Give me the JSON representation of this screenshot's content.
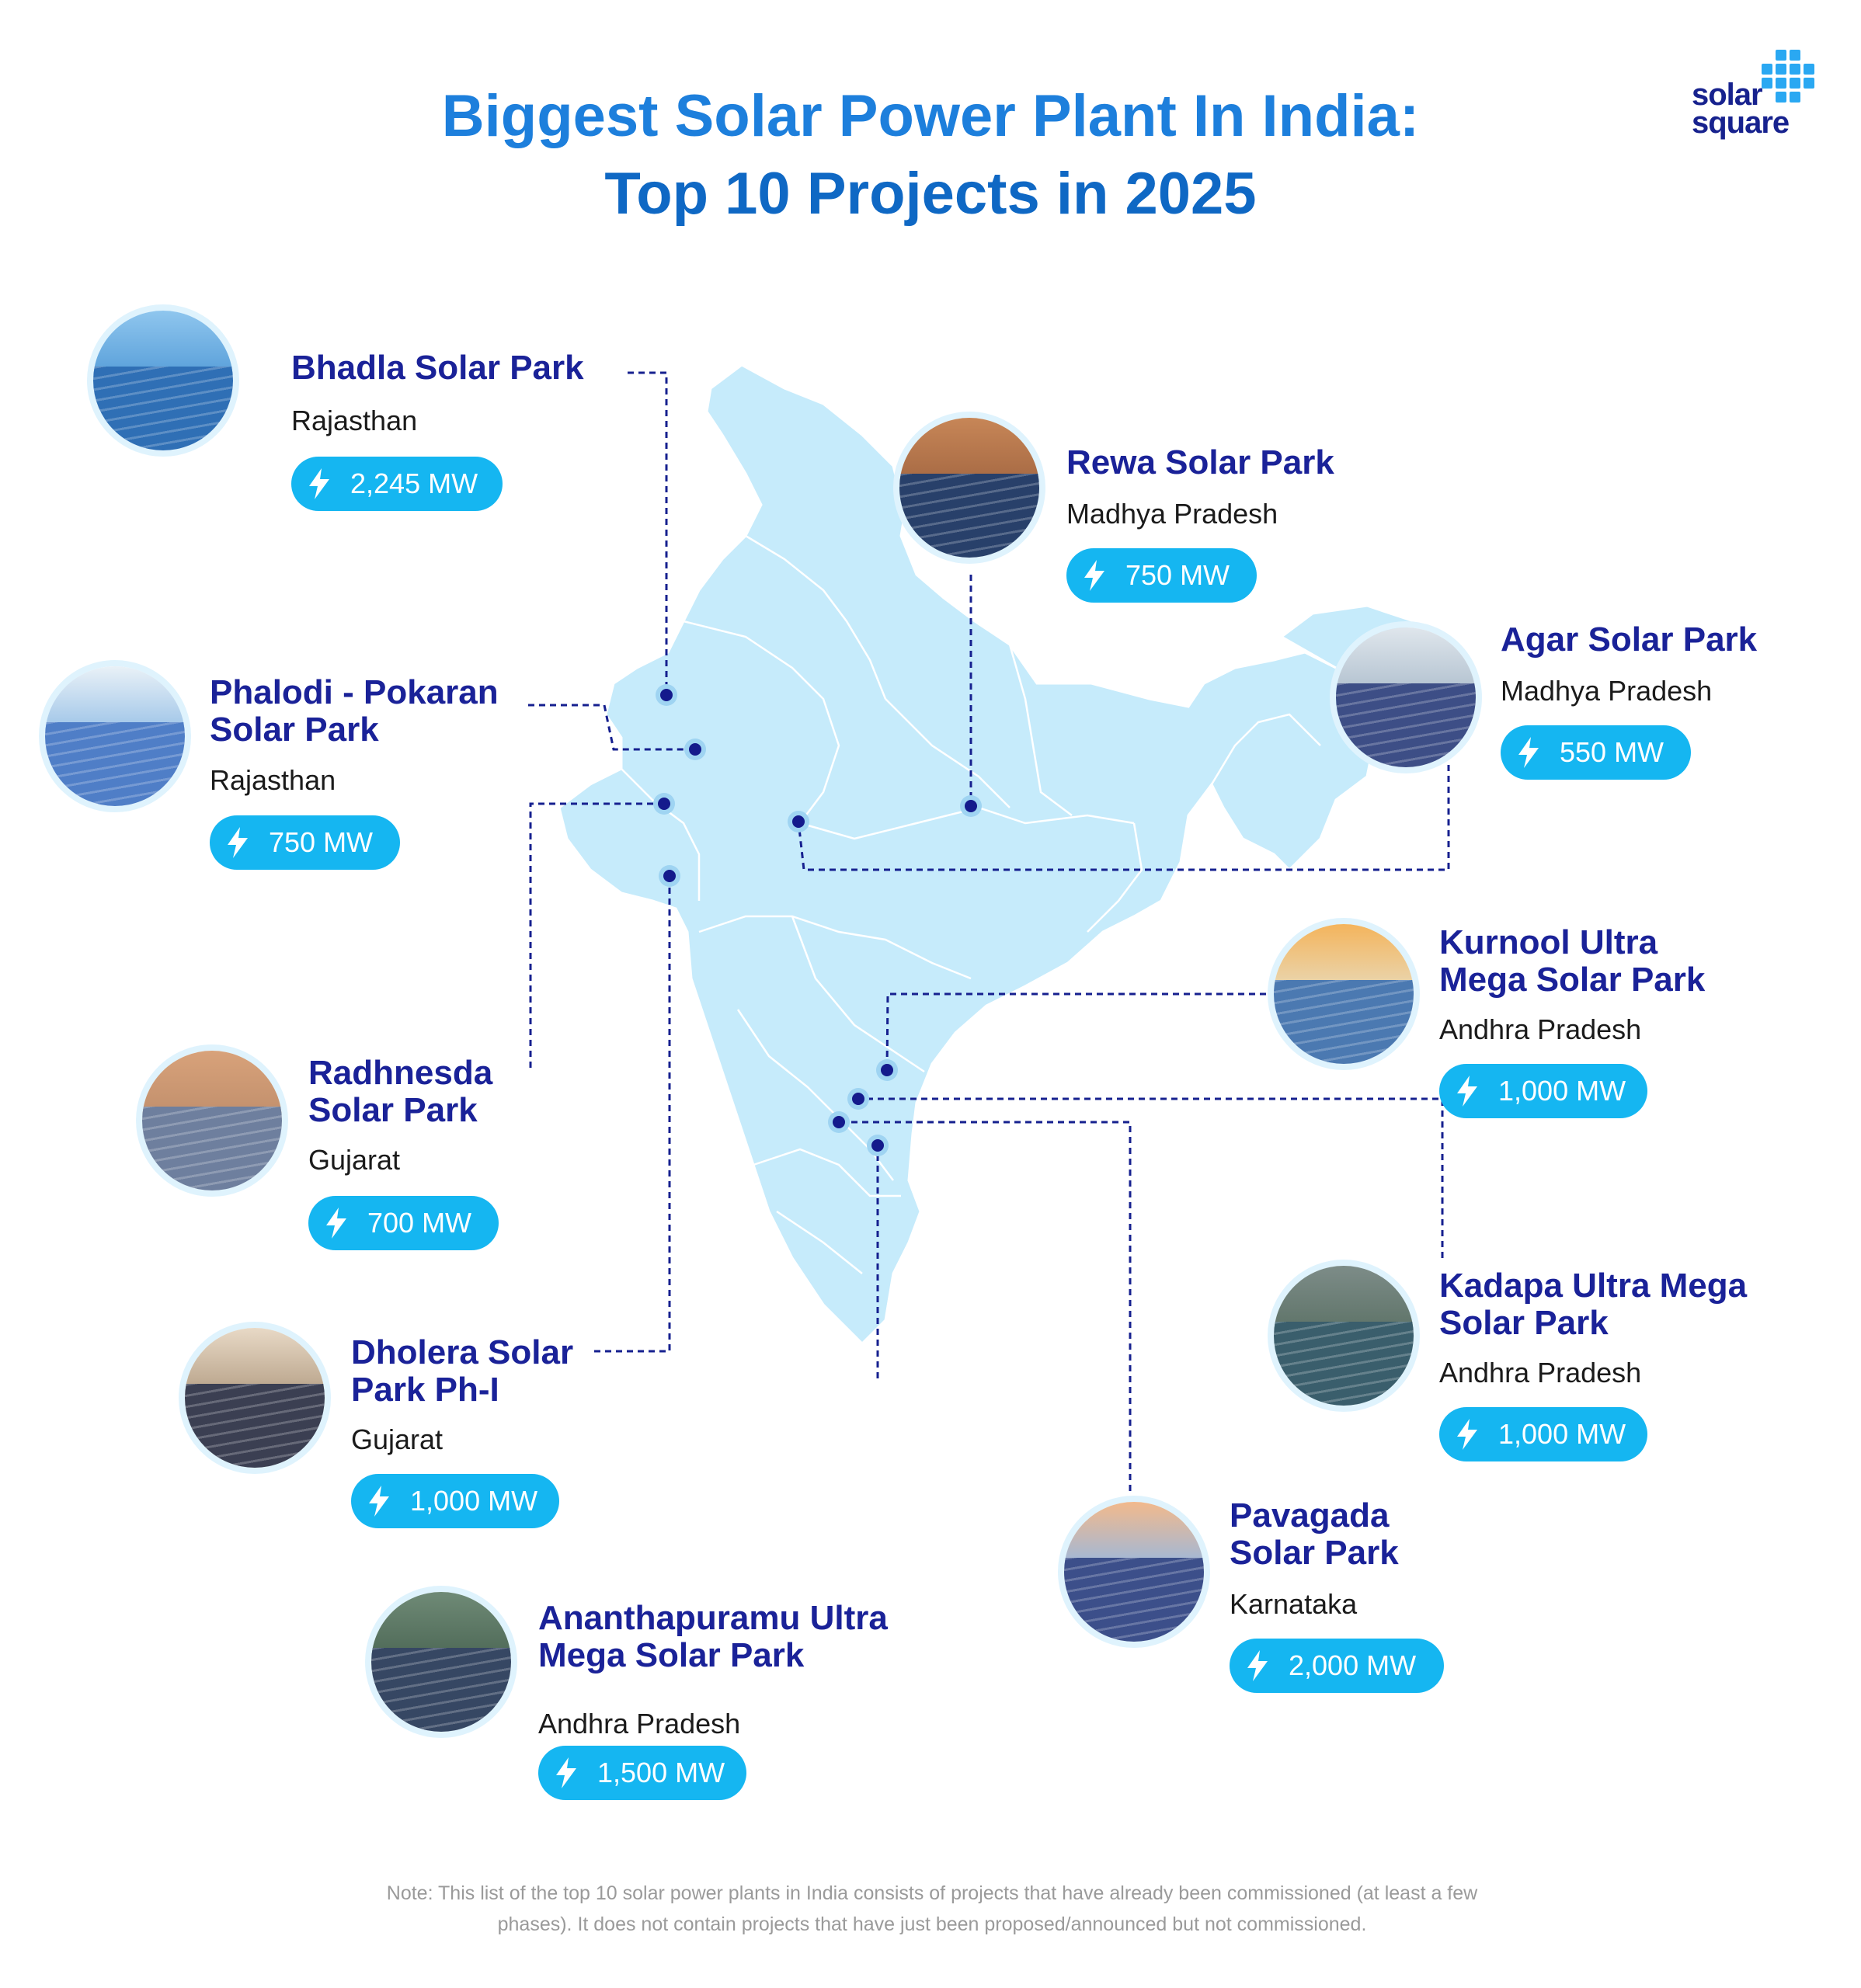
{
  "title": {
    "line1": "Biggest Solar Power Plant In India:",
    "line2": "Top 10 Projects in 2025"
  },
  "logo": {
    "line1": "solar",
    "line2": "square"
  },
  "colors": {
    "title": "#1378d6",
    "name": "#1a2298",
    "badge": "#15b6f1",
    "map": "#c6ebfb",
    "marker": "#141a8c"
  },
  "projects": [
    {
      "name": [
        "Bhadla Solar Park"
      ],
      "state": "Rajasthan",
      "capacity": "2,245 MW"
    },
    {
      "name": [
        "Phalodi - Pokaran",
        "Solar Park"
      ],
      "state": "Rajasthan",
      "capacity": "750 MW"
    },
    {
      "name": [
        "Radhnesda",
        "Solar Park"
      ],
      "state": "Gujarat",
      "capacity": "700 MW"
    },
    {
      "name": [
        "Dholera Solar",
        "Park Ph-I"
      ],
      "state": "Gujarat",
      "capacity": "1,000 MW"
    },
    {
      "name": [
        "Ananthapuramu Ultra",
        "Mega Solar Park"
      ],
      "state": "Andhra Pradesh",
      "capacity": "1,500 MW"
    },
    {
      "name": [
        "Rewa Solar Park"
      ],
      "state": "Madhya Pradesh",
      "capacity": "750 MW"
    },
    {
      "name": [
        "Agar Solar Park"
      ],
      "state": "Madhya Pradesh",
      "capacity": "550 MW"
    },
    {
      "name": [
        "Kurnool Ultra",
        "Mega Solar Park"
      ],
      "state": "Andhra Pradesh",
      "capacity": "1,000 MW"
    },
    {
      "name": [
        "Kadapa Ultra Mega",
        "Solar Park"
      ],
      "state": "Andhra Pradesh",
      "capacity": "1,000 MW"
    },
    {
      "name": [
        "Pavagada",
        "Solar Park"
      ],
      "state": "Karnataka",
      "capacity": "2,000 MW"
    }
  ],
  "note": {
    "line1": "Note: This list of the top 10 solar power plants in India consists of projects that have already been commissioned (at least a few",
    "line2": "phases). It does not contain projects that have just been proposed/announced but not commissioned."
  }
}
